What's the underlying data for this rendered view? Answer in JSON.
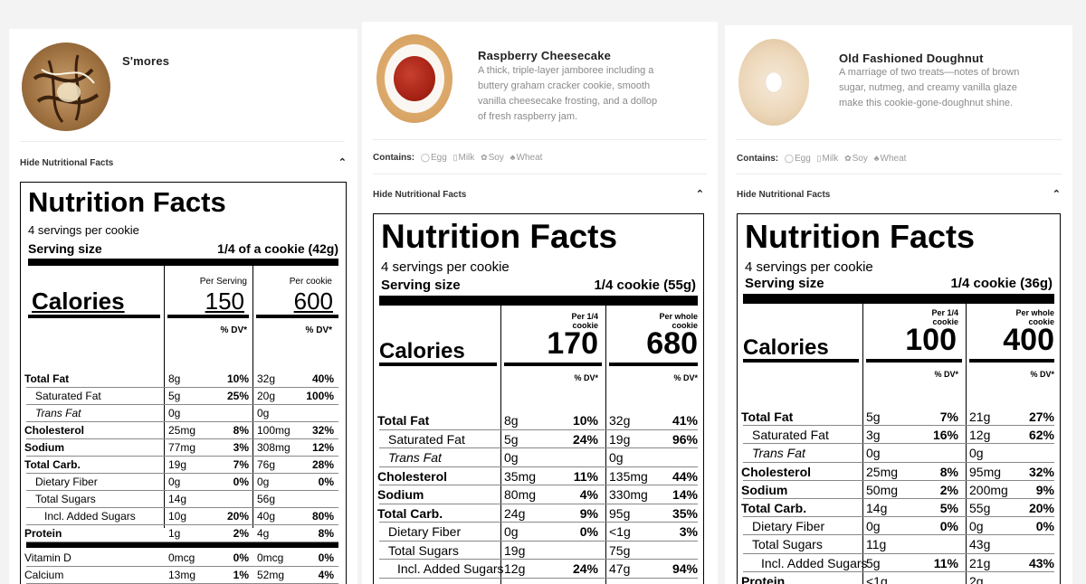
{
  "cards": [
    {
      "title": "S'mores",
      "toggle": "Hide Nutritional Facts",
      "nutrition": {
        "title": "Nutrition Facts",
        "servings": "4 servings per cookie",
        "serving_label": "Serving size",
        "serving_value": "1/4 of a cookie (42g)",
        "col1_header": "Per Serving",
        "col2_header": "Per cookie",
        "calories_label": "Calories",
        "calories_1": "150",
        "calories_2": "600",
        "dv_label": "% DV*",
        "rows": [
          {
            "name": "Total Fat",
            "a1": "8g",
            "d1": "10%",
            "a2": "32g",
            "d2": "40%"
          },
          {
            "name": "Saturated Fat",
            "a1": "5g",
            "d1": "25%",
            "a2": "20g",
            "d2": "100%"
          },
          {
            "name": "Trans Fat",
            "a1": "0g",
            "d1": "",
            "a2": "0g",
            "d2": ""
          },
          {
            "name": "Cholesterol",
            "a1": "25mg",
            "d1": "8%",
            "a2": "100mg",
            "d2": "32%"
          },
          {
            "name": "Sodium",
            "a1": "77mg",
            "d1": "3%",
            "a2": "308mg",
            "d2": "12%"
          },
          {
            "name": "Total Carb.",
            "a1": "19g",
            "d1": "7%",
            "a2": "76g",
            "d2": "28%"
          },
          {
            "name": "Dietary Fiber",
            "a1": "0g",
            "d1": "0%",
            "a2": "0g",
            "d2": "0%"
          },
          {
            "name": "Total Sugars",
            "a1": "14g",
            "d1": "",
            "a2": "56g",
            "d2": ""
          },
          {
            "name": "Incl. Added Sugars",
            "a1": "10g",
            "d1": "20%",
            "a2": "40g",
            "d2": "80%"
          },
          {
            "name": "Protein",
            "a1": "1g",
            "d1": "2%",
            "a2": "4g",
            "d2": "8%"
          },
          {
            "name": "Vitamin D",
            "a1": "0mcg",
            "d1": "0%",
            "a2": "0mcg",
            "d2": "0%"
          },
          {
            "name": "Calcium",
            "a1": "13mg",
            "d1": "1%",
            "a2": "52mg",
            "d2": "4%"
          }
        ]
      }
    },
    {
      "title": "Raspberry Cheesecake",
      "description": [
        "A thick, triple-layer jamboree including a",
        "buttery graham cracker cookie, smooth",
        "vanilla cheesecake frosting, and a dollop",
        "of fresh raspberry jam."
      ],
      "contains_label": "Contains:",
      "allergens": [
        "Egg",
        "Milk",
        "Soy",
        "Wheat"
      ],
      "toggle": "Hide Nutritional Facts",
      "nutrition": {
        "title": "Nutrition Facts",
        "servings": "4 servings per cookie",
        "serving_label": "Serving size",
        "serving_value": "1/4 cookie (55g)",
        "col1_header": [
          "Per 1/4",
          "cookie"
        ],
        "col2_header": [
          "Per whole",
          "cookie"
        ],
        "calories_label": "Calories",
        "calories_1": "170",
        "calories_2": "680",
        "dv_label": "% DV*",
        "rows": [
          {
            "name": "Total Fat",
            "a1": "8g",
            "d1": "10%",
            "a2": "32g",
            "d2": "41%"
          },
          {
            "name": "Saturated Fat",
            "a1": "5g",
            "d1": "24%",
            "a2": "19g",
            "d2": "96%"
          },
          {
            "name": "Trans Fat",
            "a1": "0g",
            "d1": "",
            "a2": "0g",
            "d2": ""
          },
          {
            "name": "Cholesterol",
            "a1": "35mg",
            "d1": "11%",
            "a2": "135mg",
            "d2": "44%"
          },
          {
            "name": "Sodium",
            "a1": "80mg",
            "d1": "4%",
            "a2": "330mg",
            "d2": "14%"
          },
          {
            "name": "Total Carb.",
            "a1": "24g",
            "d1": "9%",
            "a2": "95g",
            "d2": "35%"
          },
          {
            "name": "Dietary Fiber",
            "a1": "0g",
            "d1": "0%",
            "a2": "<1g",
            "d2": "3%"
          },
          {
            "name": "Total Sugars",
            "a1": "19g",
            "d1": "",
            "a2": "75g",
            "d2": ""
          },
          {
            "name": "Incl. Added Sugars",
            "a1": "12g",
            "d1": "24%",
            "a2": "47g",
            "d2": "94%"
          }
        ]
      }
    },
    {
      "title": "Old Fashioned Doughnut",
      "description": [
        "A marriage of two treats—notes of brown",
        "sugar, nutmeg, and creamy vanilla glaze",
        "make this cookie-gone-doughnut shine."
      ],
      "contains_label": "Contains:",
      "allergens": [
        "Egg",
        "Milk",
        "Soy",
        "Wheat"
      ],
      "toggle": "Hide Nutritional Facts",
      "nutrition": {
        "title": "Nutrition Facts",
        "servings": "4 servings per cookie",
        "serving_label": "Serving size",
        "serving_value": "1/4 cookie (36g)",
        "col1_header": [
          "Per 1/4",
          "cookie"
        ],
        "col2_header": [
          "Per whole",
          "cookie"
        ],
        "calories_label": "Calories",
        "calories_1": "100",
        "calories_2": "400",
        "dv_label": "% DV*",
        "rows": [
          {
            "name": "Total Fat",
            "a1": "5g",
            "d1": "7%",
            "a2": "21g",
            "d2": "27%"
          },
          {
            "name": "Saturated Fat",
            "a1": "3g",
            "d1": "16%",
            "a2": "12g",
            "d2": "62%"
          },
          {
            "name": "Trans Fat",
            "a1": "0g",
            "d1": "",
            "a2": "0g",
            "d2": ""
          },
          {
            "name": "Cholesterol",
            "a1": "25mg",
            "d1": "8%",
            "a2": "95mg",
            "d2": "32%"
          },
          {
            "name": "Sodium",
            "a1": "50mg",
            "d1": "2%",
            "a2": "200mg",
            "d2": "9%"
          },
          {
            "name": "Total Carb.",
            "a1": "14g",
            "d1": "5%",
            "a2": "55g",
            "d2": "20%"
          },
          {
            "name": "Dietary Fiber",
            "a1": "0g",
            "d1": "0%",
            "a2": "0g",
            "d2": "0%"
          },
          {
            "name": "Total Sugars",
            "a1": "11g",
            "d1": "",
            "a2": "43g",
            "d2": ""
          },
          {
            "name": "Incl. Added Sugars",
            "a1": "5g",
            "d1": "11%",
            "a2": "21g",
            "d2": "43%"
          },
          {
            "name": "Protein",
            "a1": "<1g",
            "d1": "",
            "a2": "2g",
            "d2": ""
          }
        ]
      }
    }
  ]
}
